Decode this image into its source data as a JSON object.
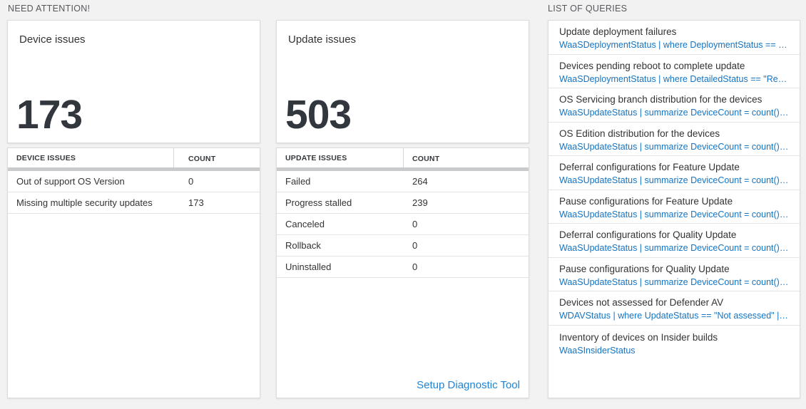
{
  "colors": {
    "page_bg": "#f2f2f2",
    "number_dark": "#31373d",
    "query_blue": "#1474c2",
    "link_blue": "#1e84d8",
    "header_bar_gray": "#c9cacc"
  },
  "sections": {
    "need_attention_label": "NEED ATTENTION!",
    "list_of_queries_label": "LIST OF QUERIES"
  },
  "device_card": {
    "title": "Device issues",
    "count": "173"
  },
  "update_card": {
    "title": "Update issues",
    "count": "503"
  },
  "device_table": {
    "headers": [
      "DEVICE ISSUES",
      "COUNT"
    ],
    "rows": [
      {
        "label": "Out of support OS Version",
        "count": "0"
      },
      {
        "label": "Missing multiple security updates",
        "count": "173"
      }
    ]
  },
  "update_table": {
    "headers": [
      "UPDATE ISSUES",
      "COUNT"
    ],
    "rows": [
      {
        "label": "Failed",
        "count": "264"
      },
      {
        "label": "Progress stalled",
        "count": "239"
      },
      {
        "label": "Canceled",
        "count": "0"
      },
      {
        "label": "Rollback",
        "count": "0"
      },
      {
        "label": "Uninstalled",
        "count": "0"
      }
    ],
    "footer_link": "Setup Diagnostic Tool"
  },
  "queries": [
    {
      "title": "Update deployment failures",
      "query": "WaaSDeploymentStatus | where DeploymentStatus == \"Failed\" |..."
    },
    {
      "title": "Devices pending reboot to complete update",
      "query": "WaaSDeploymentStatus | where DetailedStatus == \"Reboot pend..."
    },
    {
      "title": "OS Servicing branch distribution for the devices",
      "query": "WaaSUpdateStatus | summarize DeviceCount = count() by OSSer..."
    },
    {
      "title": "OS Edition distribution for the devices",
      "query": "WaaSUpdateStatus | summarize DeviceCount = count() by OSEdit..."
    },
    {
      "title": "Deferral configurations for Feature Update",
      "query": "WaaSUpdateStatus | summarize DeviceCount = count() by Featur..."
    },
    {
      "title": "Pause configurations for Feature Update",
      "query": "WaaSUpdateStatus | summarize DeviceCount = count() by Featur..."
    },
    {
      "title": "Deferral configurations for Quality Update",
      "query": "WaaSUpdateStatus | summarize DeviceCount = count() by Qualit..."
    },
    {
      "title": "Pause configurations for Quality Update",
      "query": "WaaSUpdateStatus | summarize DeviceCount = count() by Qualit..."
    },
    {
      "title": "Devices not assessed for Defender AV",
      "query": "WDAVStatus | where UpdateStatus == \"Not assessed\" | render ta..."
    },
    {
      "title": "Inventory of devices on Insider builds",
      "query": "WaaSInsiderStatus"
    }
  ]
}
